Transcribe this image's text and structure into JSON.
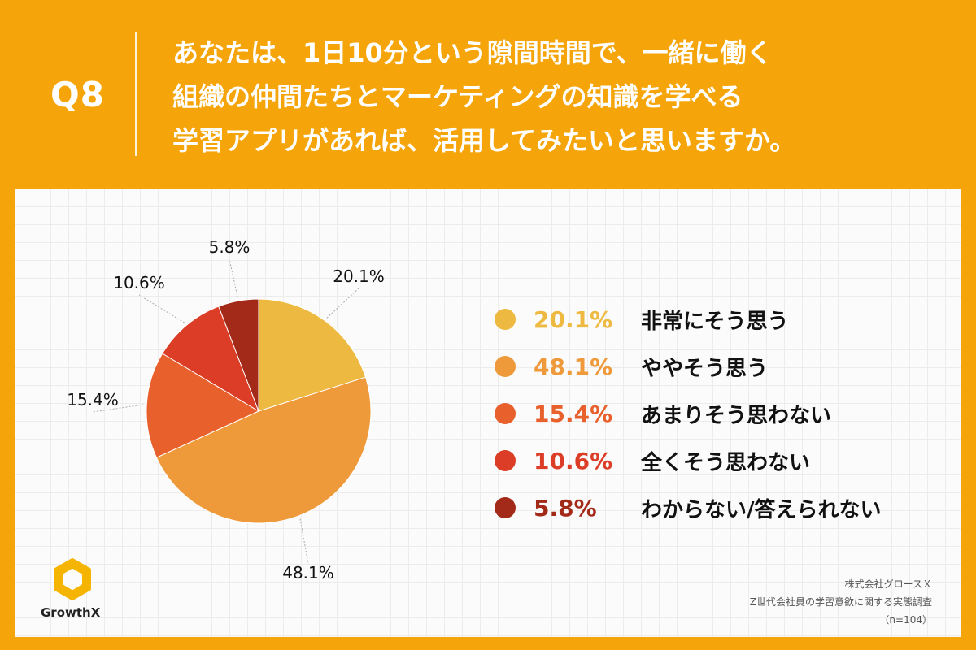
{
  "header": {
    "question_number": "Q8",
    "question_lines": [
      "あなたは、1日10分という隙間時間で、一緒に働く",
      "組織の仲間たちとマーケティングの知識を学べる",
      "学習アプリがあれば、活用してみたいと思いますか。"
    ]
  },
  "colors": {
    "background": "#F5A50A",
    "slices": [
      "#EDB940",
      "#EF9A3A",
      "#E8602C",
      "#DB3D26",
      "#A32A18"
    ]
  },
  "chart_data": {
    "type": "pie",
    "title": "",
    "slices": [
      {
        "label": "非常にそう思う",
        "value": 20.1,
        "display": "20.1%"
      },
      {
        "label": "ややそう思う",
        "value": 48.1,
        "display": "48.1%"
      },
      {
        "label": "あまりそう思わない",
        "value": 15.4,
        "display": "15.4%"
      },
      {
        "label": "全くそう思わない",
        "value": 10.6,
        "display": "10.6%"
      },
      {
        "label": "わからない/答えられない",
        "value": 5.8,
        "display": "5.8%"
      }
    ],
    "start_angle": "12 o'clock",
    "direction": "clockwise",
    "legend_position": "right"
  },
  "logo": {
    "text": "GrowthX",
    "icon": "hexagon-ring-icon"
  },
  "source": {
    "company": "株式会社グロースＸ",
    "survey": "Z世代会社員の学習意欲に関する実態調査",
    "sample": "（n=104）"
  }
}
